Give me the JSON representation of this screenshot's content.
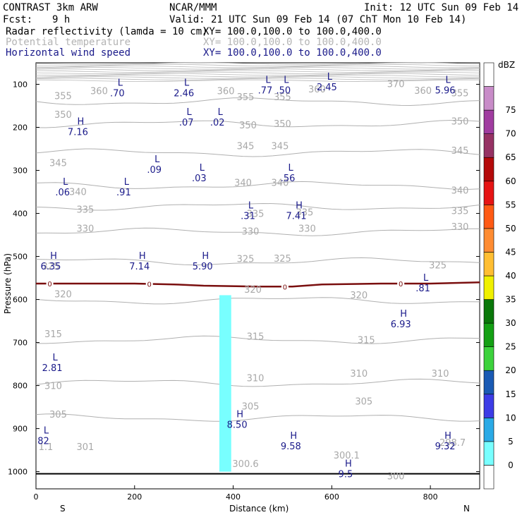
{
  "header": {
    "model": "CONTRAST  3km ARW",
    "org": "NCAR/MMM",
    "init": "Init: 12 UTC Sun 09 Feb 14",
    "fcst_label": "Fcst:",
    "fcst_value": "9 h",
    "valid": "Valid: 21 UTC Sun 09 Feb 14 (07 ChT Mon 10 Feb 14)",
    "fields": [
      {
        "name": "Radar reflectivity (lamda = 10 cm)",
        "xy": "XY= 100.0,100.0 to 100.0,400.0",
        "color": "#000000"
      },
      {
        "name": "Potential temperature",
        "xy": "XY= 100.0,100.0 to 100.0,400.0",
        "color": "#b4b4b4"
      },
      {
        "name": "Horizontal wind speed",
        "xy": "XY= 100.0,100.0 to 100.0,400.0",
        "color": "#1a1a8a"
      }
    ]
  },
  "chart_data": {
    "type": "cross-section",
    "xlabel": "Distance (km)",
    "ylabel": "Pressure (hPa)",
    "xlim": [
      0,
      900
    ],
    "ylim": [
      50,
      1040
    ],
    "x_ticks": [
      0,
      200,
      400,
      600,
      800
    ],
    "y_ticks": [
      100,
      200,
      300,
      400,
      500,
      600,
      700,
      800,
      900,
      1000
    ],
    "x_end_labels": {
      "left": "S",
      "right": "N"
    },
    "theta_isolines": [
      {
        "value": 355,
        "p": 140
      },
      {
        "value": 350,
        "p": 192
      },
      {
        "value": 345,
        "p": 259
      },
      {
        "value": 340,
        "p": 335
      },
      {
        "value": 335,
        "p": 384
      },
      {
        "value": 330,
        "p": 443
      },
      {
        "value": 325,
        "p": 512
      },
      {
        "value": 320,
        "p": 602
      },
      {
        "value": 315,
        "p": 694
      },
      {
        "value": 310,
        "p": 794
      },
      {
        "value": 305,
        "p": 875
      }
    ],
    "theta_labels": [
      {
        "text": "360",
        "x": 128,
        "p": 115
      },
      {
        "text": "360",
        "x": 385,
        "p": 115
      },
      {
        "text": "360",
        "x": 570,
        "p": 111
      },
      {
        "text": "360",
        "x": 785,
        "p": 114
      },
      {
        "text": "370",
        "x": 730,
        "p": 98
      },
      {
        "text": "355",
        "x": 55,
        "p": 126
      },
      {
        "text": "355",
        "x": 425,
        "p": 129
      },
      {
        "text": "355",
        "x": 500,
        "p": 129
      },
      {
        "text": "355",
        "x": 860,
        "p": 120
      },
      {
        "text": "350",
        "x": 55,
        "p": 170
      },
      {
        "text": "350",
        "x": 430,
        "p": 194
      },
      {
        "text": "350",
        "x": 500,
        "p": 191
      },
      {
        "text": "350",
        "x": 860,
        "p": 185
      },
      {
        "text": "345",
        "x": 45,
        "p": 282
      },
      {
        "text": "345",
        "x": 425,
        "p": 243
      },
      {
        "text": "345",
        "x": 495,
        "p": 243
      },
      {
        "text": "345",
        "x": 860,
        "p": 253
      },
      {
        "text": "340",
        "x": 85,
        "p": 349
      },
      {
        "text": "340",
        "x": 420,
        "p": 328
      },
      {
        "text": "340",
        "x": 495,
        "p": 328
      },
      {
        "text": "340",
        "x": 860,
        "p": 346
      },
      {
        "text": "335",
        "x": 100,
        "p": 390
      },
      {
        "text": "335",
        "x": 445,
        "p": 400
      },
      {
        "text": "335",
        "x": 545,
        "p": 397
      },
      {
        "text": "335",
        "x": 860,
        "p": 393
      },
      {
        "text": "330",
        "x": 100,
        "p": 434
      },
      {
        "text": "330",
        "x": 435,
        "p": 441
      },
      {
        "text": "330",
        "x": 550,
        "p": 434
      },
      {
        "text": "330",
        "x": 860,
        "p": 430
      },
      {
        "text": "325",
        "x": 30,
        "p": 522
      },
      {
        "text": "325",
        "x": 425,
        "p": 505
      },
      {
        "text": "325",
        "x": 500,
        "p": 504
      },
      {
        "text": "325",
        "x": 815,
        "p": 520
      },
      {
        "text": "320",
        "x": 55,
        "p": 587
      },
      {
        "text": "320",
        "x": 440,
        "p": 576
      },
      {
        "text": "320",
        "x": 655,
        "p": 589
      },
      {
        "text": "315",
        "x": 35,
        "p": 679
      },
      {
        "text": "315",
        "x": 445,
        "p": 685
      },
      {
        "text": "315",
        "x": 670,
        "p": 693
      },
      {
        "text": "310",
        "x": 35,
        "p": 800
      },
      {
        "text": "310",
        "x": 445,
        "p": 782
      },
      {
        "text": "310",
        "x": 655,
        "p": 771
      },
      {
        "text": "310",
        "x": 820,
        "p": 771
      },
      {
        "text": "305",
        "x": 45,
        "p": 866
      },
      {
        "text": "305",
        "x": 435,
        "p": 847
      },
      {
        "text": "305",
        "x": 665,
        "p": 836
      },
      {
        "text": "301",
        "x": 100,
        "p": 942
      },
      {
        "text": "1.1",
        "x": 20,
        "p": 942
      },
      {
        "text": "300.6",
        "x": 425,
        "p": 981
      },
      {
        "text": "300.1",
        "x": 630,
        "p": 961
      },
      {
        "text": "298.7",
        "x": 845,
        "p": 932
      },
      {
        "text": "300",
        "x": 730,
        "p": 1010
      }
    ],
    "wind_extrema": [
      {
        "type": "L",
        "value": ".70",
        "x": 165,
        "p": 110
      },
      {
        "type": "L",
        "value": "2.46",
        "x": 300,
        "p": 110
      },
      {
        "type": "L",
        "value": ".77",
        "x": 465,
        "p": 103
      },
      {
        "type": "L",
        "value": ".50",
        "x": 502,
        "p": 103
      },
      {
        "type": "L",
        "value": "2.45",
        "x": 590,
        "p": 96
      },
      {
        "type": "L",
        "value": "5.96",
        "x": 830,
        "p": 103
      },
      {
        "type": "H",
        "value": "7.16",
        "x": 85,
        "p": 200
      },
      {
        "type": "L",
        "value": ".07",
        "x": 305,
        "p": 178
      },
      {
        "type": "L",
        "value": ".02",
        "x": 368,
        "p": 178
      },
      {
        "type": "L",
        "value": ".09",
        "x": 240,
        "p": 288
      },
      {
        "type": "L",
        "value": ".03",
        "x": 331,
        "p": 307
      },
      {
        "type": "L",
        "value": ".56",
        "x": 511,
        "p": 307
      },
      {
        "type": "L",
        "value": ".06",
        "x": 54,
        "p": 340
      },
      {
        "type": "L",
        "value": ".91",
        "x": 178,
        "p": 340
      },
      {
        "type": "L",
        "value": ".31",
        "x": 430,
        "p": 395
      },
      {
        "type": "H",
        "value": "7.41",
        "x": 528,
        "p": 395
      },
      {
        "type": "H",
        "value": "6.35",
        "x": 30,
        "p": 512
      },
      {
        "type": "H",
        "value": "7.14",
        "x": 210,
        "p": 512
      },
      {
        "type": "H",
        "value": "5.90",
        "x": 338,
        "p": 512
      },
      {
        "type": "L",
        "value": ".81",
        "x": 785,
        "p": 563
      },
      {
        "type": "H",
        "value": "6.93",
        "x": 740,
        "p": 647
      },
      {
        "type": "L",
        "value": "2.81",
        "x": 33,
        "p": 748
      },
      {
        "type": "H",
        "value": "8.50",
        "x": 408,
        "p": 880
      },
      {
        "type": "L",
        "value": "82",
        "x": 15,
        "p": 918
      },
      {
        "type": "H",
        "value": "9.58",
        "x": 517,
        "p": 930
      },
      {
        "type": "H",
        "value": "9.32",
        "x": 830,
        "p": 930
      },
      {
        "type": "H",
        "value": "9.5",
        "x": 628,
        "p": 995
      }
    ],
    "zero_isotherm": {
      "label": "0",
      "label_x": [
        28,
        230,
        505,
        740
      ],
      "points": [
        [
          0,
          563
        ],
        [
          100,
          563
        ],
        [
          200,
          563
        ],
        [
          280,
          565
        ],
        [
          340,
          568
        ],
        [
          450,
          570
        ],
        [
          520,
          570
        ],
        [
          580,
          565
        ],
        [
          700,
          563
        ],
        [
          800,
          563
        ],
        [
          900,
          560
        ]
      ]
    },
    "reflectivity_column": {
      "x_range": [
        372,
        396
      ],
      "p_range": [
        590,
        1000
      ],
      "dbz": 5,
      "color": "#78ffff"
    },
    "terrain_p": 1005,
    "dbz_colorbar": {
      "label": "dBZ",
      "levels": [
        0,
        5,
        10,
        15,
        20,
        25,
        30,
        35,
        40,
        45,
        50,
        55,
        60,
        65,
        70,
        75
      ],
      "colors": [
        "#ffffff",
        "#78ffff",
        "#2aaae6",
        "#3c3ce6",
        "#1a5ab4",
        "#3cd23c",
        "#14a014",
        "#0a780a",
        "#f0f000",
        "#ffbe32",
        "#ff8c32",
        "#ff5a14",
        "#e61414",
        "#b40a0a",
        "#963264",
        "#a03ca0",
        "#c88cc8",
        "#ffffff"
      ]
    }
  }
}
